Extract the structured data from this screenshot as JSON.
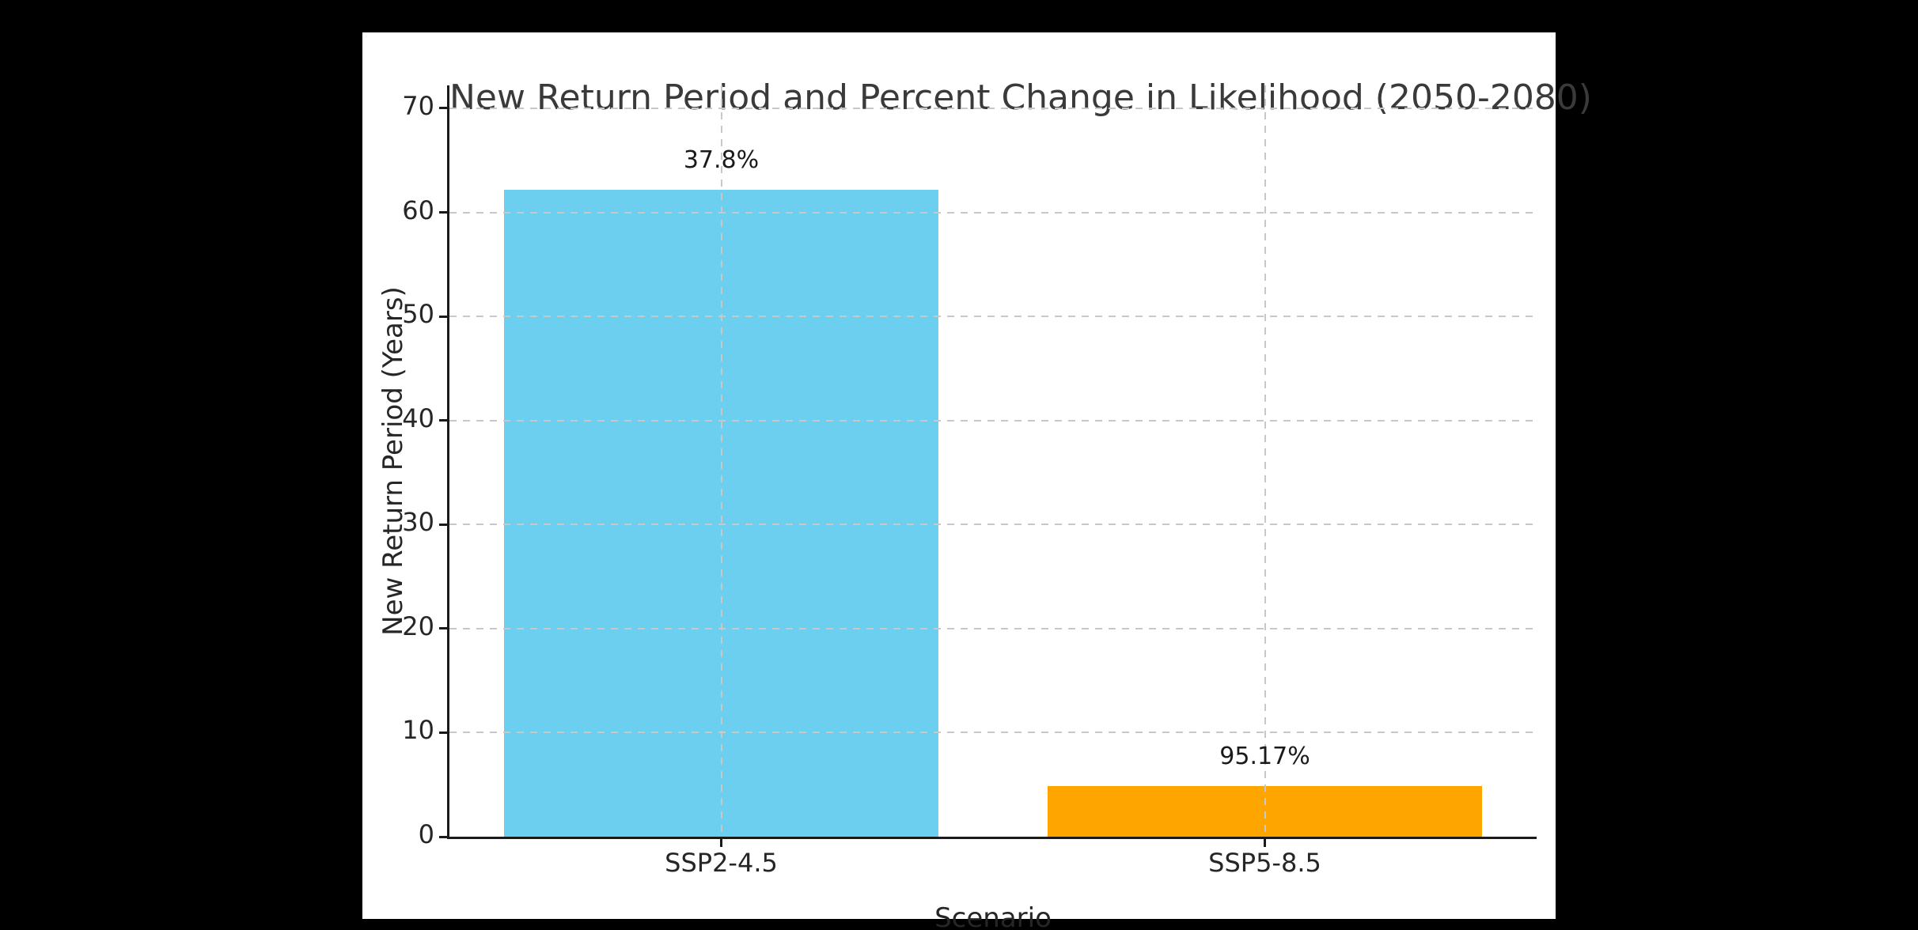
{
  "window": {
    "background_color": "#000000",
    "figure_background_color": "#ffffff"
  },
  "chart_data": {
    "type": "bar",
    "title": "New Return Period and Percent Change in Likelihood (2050-2080)",
    "xlabel": "Scenario",
    "ylabel": "New Return Period (Years)",
    "categories": [
      "SSP2-4.5",
      "SSP5-8.5"
    ],
    "values": [
      62.2,
      4.83
    ],
    "bar_labels": [
      "37.8%",
      "95.17%"
    ],
    "bar_colors": [
      "#6dcff0",
      "#ffa500"
    ],
    "ylim": [
      0,
      72.2
    ],
    "yticks": [
      0,
      10,
      20,
      30,
      40,
      50,
      60,
      70
    ],
    "grid": {
      "horizontal": "dashed at each y tick",
      "vertical": "dashed at each category center",
      "color": "#c8c8c8",
      "drawn_above_bars": true
    },
    "spines": {
      "left": true,
      "bottom": true,
      "top": false,
      "right": false,
      "color": "#1a1a1a"
    },
    "legend": null,
    "text_color": "#262626",
    "title_color": "#3a3a3a"
  }
}
